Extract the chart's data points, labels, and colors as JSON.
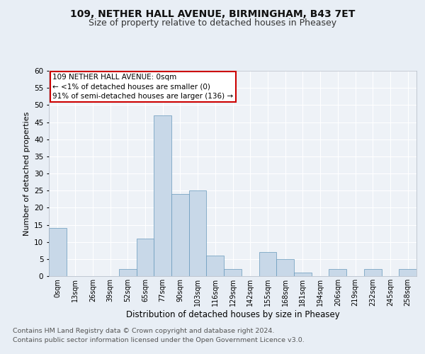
{
  "title1": "109, NETHER HALL AVENUE, BIRMINGHAM, B43 7ET",
  "title2": "Size of property relative to detached houses in Pheasey",
  "xlabel": "Distribution of detached houses by size in Pheasey",
  "ylabel": "Number of detached properties",
  "bar_color": "#c8d8e8",
  "bar_edge_color": "#6699bb",
  "categories": [
    "0sqm",
    "13sqm",
    "26sqm",
    "39sqm",
    "52sqm",
    "65sqm",
    "77sqm",
    "90sqm",
    "103sqm",
    "116sqm",
    "129sqm",
    "142sqm",
    "155sqm",
    "168sqm",
    "181sqm",
    "194sqm",
    "206sqm",
    "219sqm",
    "232sqm",
    "245sqm",
    "258sqm"
  ],
  "values": [
    14,
    0,
    0,
    0,
    2,
    11,
    47,
    24,
    25,
    6,
    2,
    0,
    7,
    5,
    1,
    0,
    2,
    0,
    2,
    0,
    2
  ],
  "ylim": [
    0,
    60
  ],
  "yticks": [
    0,
    5,
    10,
    15,
    20,
    25,
    30,
    35,
    40,
    45,
    50,
    55,
    60
  ],
  "annotation_text": "109 NETHER HALL AVENUE: 0sqm\n← <1% of detached houses are smaller (0)\n91% of semi-detached houses are larger (136) →",
  "annotation_box_color": "#ffffff",
  "annotation_box_edge": "#cc0000",
  "footnote1": "Contains HM Land Registry data © Crown copyright and database right 2024.",
  "footnote2": "Contains public sector information licensed under the Open Government Licence v3.0.",
  "bg_color": "#e8eef5",
  "plot_bg_color": "#eef2f7",
  "grid_color": "#ffffff",
  "title1_fontsize": 10,
  "title2_fontsize": 9,
  "annotation_fontsize": 7.5,
  "footnote_fontsize": 6.8,
  "ylabel_fontsize": 8,
  "xlabel_fontsize": 8.5,
  "xtick_fontsize": 7,
  "ytick_fontsize": 7.5
}
